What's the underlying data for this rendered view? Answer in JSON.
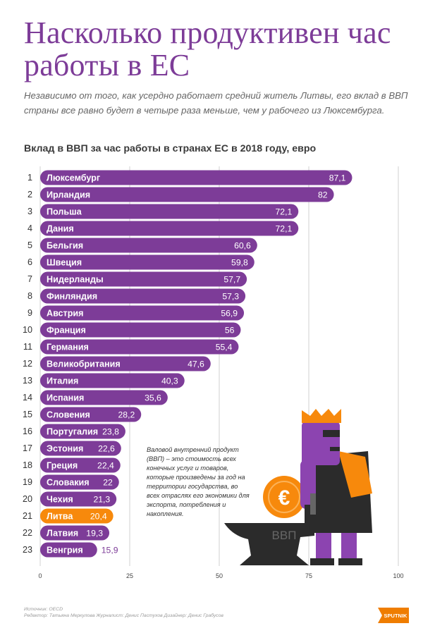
{
  "title": "Насколько продуктивен час работы в ЕС",
  "subtitle": "Независимо от того, как усердно работает средний житель Литвы, его вклад в ВВП страны все равно будет в четыре раза меньше, чем у рабочего из Люксембурга.",
  "colors": {
    "accent": "#7d3c98",
    "highlight": "#f7890c",
    "text": "#333333"
  },
  "chart_data": {
    "type": "bar",
    "orientation": "horizontal",
    "title": "Вклад в ВВП за час работы в странах ЕС в 2018 году, евро",
    "ranks": [
      "1",
      "2",
      "3",
      "4",
      "5",
      "6",
      "7",
      "8",
      "9",
      "10",
      "11",
      "12",
      "13",
      "14",
      "15",
      "16",
      "17",
      "18",
      "19",
      "20",
      "21",
      "22",
      "23"
    ],
    "categories": [
      "Люксембург",
      "Ирландия",
      "Польша",
      "Дания",
      "Бельгия",
      "Швеция",
      "Нидерланды",
      "Финляндия",
      "Австрия",
      "Франция",
      "Германия",
      "Великобритания",
      "Италия",
      "Испания",
      "Словения",
      "Португалия",
      "Эстония",
      "Греция",
      "Словакия",
      "Чехия",
      "Литва",
      "Латвия",
      "Венгрия"
    ],
    "values": [
      87.1,
      82,
      72.1,
      72.1,
      60.6,
      59.8,
      57.7,
      57.3,
      56.9,
      56,
      55.4,
      47.6,
      40.3,
      35.6,
      28.2,
      23.8,
      22.6,
      22.4,
      22,
      21.3,
      20.4,
      19.3,
      15.9
    ],
    "value_labels": [
      "87,1",
      "82",
      "72,1",
      "72,1",
      "60,6",
      "59,8",
      "57,7",
      "57,3",
      "56,9",
      "56",
      "55,4",
      "47,6",
      "40,3",
      "35,6",
      "28,2",
      "23,8",
      "22,6",
      "22,4",
      "22",
      "21,3",
      "20,4",
      "19,3",
      "15,9"
    ],
    "highlight": "Литва",
    "xlim": [
      0,
      100
    ],
    "xticks": [
      0,
      25,
      50,
      75,
      100
    ],
    "xtick_labels": [
      "0",
      "25",
      "50",
      "75",
      "100"
    ],
    "grid": true
  },
  "note": "Валовой внутренний продукт (ВВП) – это стоимость всех конечных услуг и товаров, которые произведены за год на территории государства, во всех отраслях его экономики для экспорта, потребления и накопления.",
  "illustration": {
    "anvil_label": "ВВП",
    "coin_symbol": "€"
  },
  "credits": {
    "source": "Источник: OECD",
    "staff": "Редактор: Татьяна Меркулова  Журналист: Денис Пастухов  Дизайнер: Денис Грабусов"
  },
  "logo": {
    "text": "SPUTNIK"
  }
}
